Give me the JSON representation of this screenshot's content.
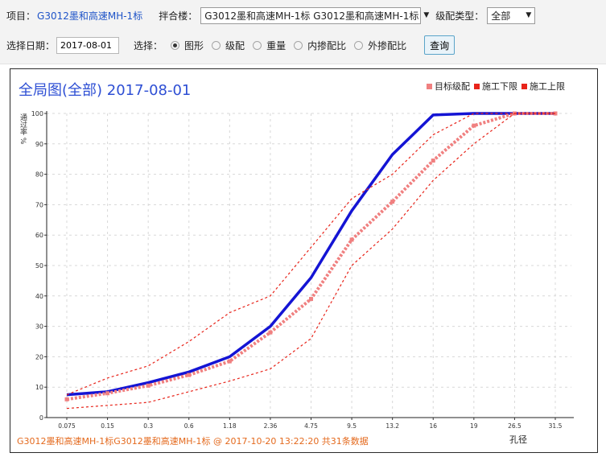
{
  "toolbar": {
    "project_label": "项目：",
    "project_value": "G3012墨和高速MH-1标",
    "mixer_label": "拌合楼：",
    "mixer_value": "G3012墨和高速MH-1标 G3012墨和高速MH-1标",
    "grade_type_label": "级配类型：",
    "grade_type_value": "全部",
    "date_label": "选择日期：",
    "date_value": "2017-08-01",
    "select_label": "选择：",
    "options": [
      {
        "label": "图形",
        "checked": true
      },
      {
        "label": "级配",
        "checked": false
      },
      {
        "label": "重量",
        "checked": false
      },
      {
        "label": "内掺配比",
        "checked": false
      },
      {
        "label": "外掺配比",
        "checked": false
      }
    ],
    "query_button": "查询"
  },
  "chart_header": {
    "title": "全局图(全部) 2017-08-01",
    "legend": [
      {
        "name": "目标级配",
        "color": "#f08080"
      },
      {
        "name": "施工下限",
        "color": "#e8241a"
      },
      {
        "name": "施工上限",
        "color": "#e8241a"
      }
    ],
    "footer": "G3012墨和高速MH-1标G3012墨和高速MH-1标 @ 2017-10-20 13:22:20 共31条数据"
  },
  "chart_data": {
    "type": "line",
    "xlabel": "孔径",
    "ylabel": "通过率 %",
    "categories": [
      "0.075",
      "0.15",
      "0.3",
      "0.6",
      "1.18",
      "2.36",
      "4.75",
      "9.5",
      "13.2",
      "16",
      "19",
      "26.5",
      "31.5"
    ],
    "ylim": [
      0,
      100
    ],
    "yticks": [
      0,
      10,
      20,
      30,
      40,
      50,
      60,
      70,
      80,
      90,
      100
    ],
    "grid": true,
    "series": [
      {
        "name": "",
        "color": "#1414d4",
        "values": [
          7.5,
          8.5,
          11.5,
          15,
          20,
          30,
          46,
          68,
          86.5,
          99.5,
          100,
          100,
          100
        ]
      },
      {
        "name": "目标级配",
        "color": "#f08080",
        "values": [
          6,
          8,
          10.5,
          14,
          18.5,
          28,
          39,
          58.5,
          71,
          84.5,
          96,
          100,
          100
        ]
      },
      {
        "name": "施工下限",
        "color": "#e8241a",
        "values": [
          3,
          4,
          5,
          8.5,
          12,
          16,
          26,
          50,
          62,
          78,
          90,
          100,
          100
        ]
      },
      {
        "name": "施工上限",
        "color": "#e8241a",
        "values": [
          7.5,
          13,
          17,
          25,
          34.5,
          40,
          56,
          72,
          80,
          93,
          100,
          100,
          100
        ]
      }
    ]
  }
}
